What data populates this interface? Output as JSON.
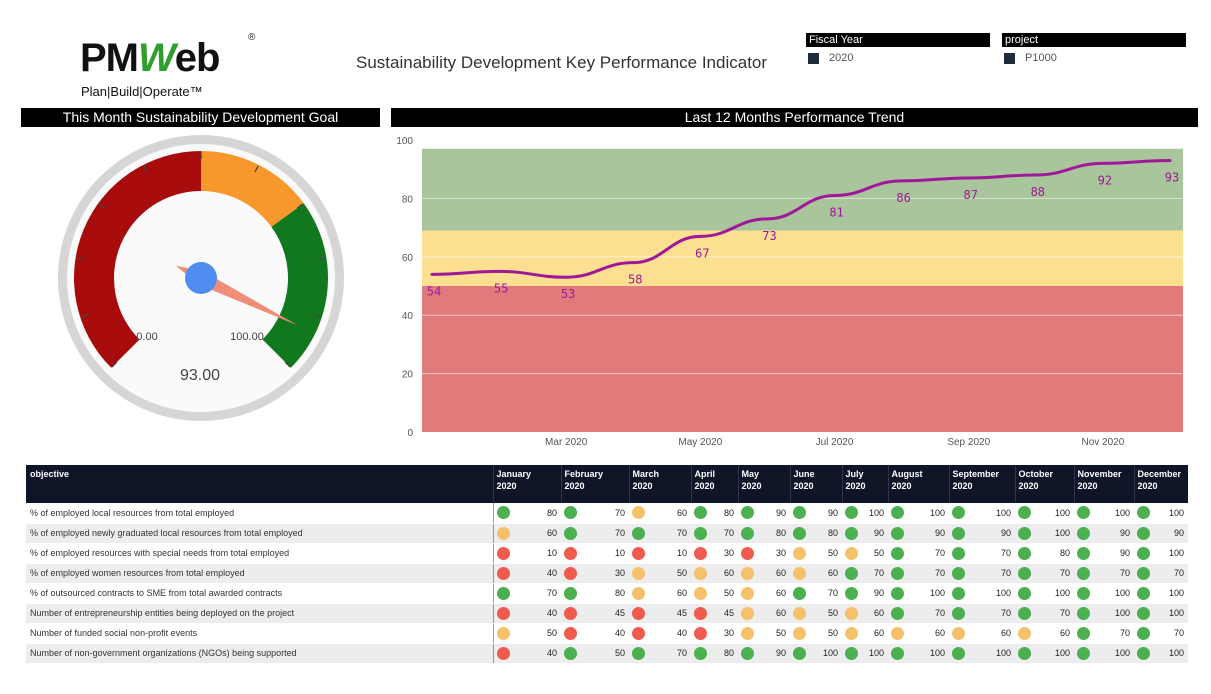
{
  "logo": {
    "word_part1": "PM",
    "word_part2": "W",
    "word_part3": "eb",
    "registered": "®",
    "tagline": "Plan|Build|Operate™"
  },
  "dashboard_title": "Sustainability Development Key Performance Indicator",
  "slicers": {
    "fiscal_year": {
      "label": "Fiscal Year",
      "value": "2020"
    },
    "project": {
      "label": "project",
      "value": "P1000"
    }
  },
  "panels": {
    "gauge_title": "This Month Sustainability Development Goal",
    "trend_title": "Last 12 Months Performance Trend"
  },
  "colors": {
    "green": "#4caf50",
    "amber": "#f5c26b",
    "red": "#ef5b4f",
    "line": "#a0189a",
    "band_green": "#a9c59b",
    "band_yellow": "#fddf91",
    "band_red": "#e17b7b",
    "gauge_red": "#a80b0b",
    "gauge_orange": "#f7972c",
    "gauge_green": "#12781e",
    "needle": "#ef8d77",
    "hub": "#4f8ef0"
  },
  "chart_data": [
    {
      "type": "gauge",
      "title": "This Month Sustainability Development Goal",
      "value": 93,
      "value_label": "93.00",
      "min": 0,
      "max": 100,
      "min_label": "0.00",
      "max_label": "100.00",
      "bands": [
        {
          "from": 0,
          "to": 50,
          "color": "#a80b0b"
        },
        {
          "from": 50,
          "to": 70,
          "color": "#f7972c"
        },
        {
          "from": 70,
          "to": 100,
          "color": "#12781e"
        }
      ]
    },
    {
      "type": "line",
      "title": "Last 12 Months Performance Trend",
      "x": [
        "Jan 2020",
        "Feb 2020",
        "Mar 2020",
        "Apr 2020",
        "May 2020",
        "Jun 2020",
        "Jul 2020",
        "Aug 2020",
        "Sep 2020",
        "Oct 2020",
        "Nov 2020",
        "Dec 2020"
      ],
      "x_tick_labels": [
        "Mar 2020",
        "May 2020",
        "Jul 2020",
        "Sep 2020",
        "Nov 2020"
      ],
      "values": [
        54,
        55,
        53,
        58,
        67,
        73,
        81,
        86,
        87,
        88,
        92,
        93
      ],
      "ylim": [
        0,
        100
      ],
      "y_ticks": [
        0,
        20,
        40,
        60,
        80,
        100
      ],
      "bands": [
        {
          "from": 0,
          "to": 50,
          "color": "#e17b7b"
        },
        {
          "from": 50,
          "to": 69,
          "color": "#fddf91"
        },
        {
          "from": 69,
          "to": 97,
          "color": "#a9c59b"
        }
      ],
      "grid": true
    },
    {
      "type": "table",
      "columns": [
        {
          "label": "objective"
        },
        {
          "label": "January\n2020"
        },
        {
          "label": "February\n2020"
        },
        {
          "label": "March\n2020"
        },
        {
          "label": "April\n2020"
        },
        {
          "label": "May\n2020"
        },
        {
          "label": "June\n2020"
        },
        {
          "label": "July\n2020"
        },
        {
          "label": "August\n2020"
        },
        {
          "label": "September\n2020"
        },
        {
          "label": "October\n2020"
        },
        {
          "label": "November\n2020"
        },
        {
          "label": "December\n2020"
        }
      ],
      "rows": [
        {
          "objective": "% of employed local resources from total employed",
          "cells": [
            [
              "green",
              80
            ],
            [
              "green",
              70
            ],
            [
              "amber",
              60
            ],
            [
              "green",
              80
            ],
            [
              "green",
              90
            ],
            [
              "green",
              90
            ],
            [
              "green",
              100
            ],
            [
              "green",
              100
            ],
            [
              "green",
              100
            ],
            [
              "green",
              100
            ],
            [
              "green",
              100
            ],
            [
              "green",
              100
            ]
          ]
        },
        {
          "objective": "% of employed newly graduated local resources from total employed",
          "cells": [
            [
              "amber",
              60
            ],
            [
              "green",
              70
            ],
            [
              "green",
              70
            ],
            [
              "green",
              70
            ],
            [
              "green",
              80
            ],
            [
              "green",
              80
            ],
            [
              "green",
              90
            ],
            [
              "green",
              90
            ],
            [
              "green",
              90
            ],
            [
              "green",
              100
            ],
            [
              "green",
              90
            ],
            [
              "green",
              90
            ]
          ]
        },
        {
          "objective": "% of employed resources with special needs from total employed",
          "cells": [
            [
              "red",
              10
            ],
            [
              "red",
              10
            ],
            [
              "red",
              10
            ],
            [
              "red",
              30
            ],
            [
              "red",
              30
            ],
            [
              "amber",
              50
            ],
            [
              "amber",
              50
            ],
            [
              "green",
              70
            ],
            [
              "green",
              70
            ],
            [
              "green",
              80
            ],
            [
              "green",
              90
            ],
            [
              "green",
              100
            ]
          ]
        },
        {
          "objective": "% of employed women resources from total employed",
          "cells": [
            [
              "red",
              40
            ],
            [
              "red",
              30
            ],
            [
              "amber",
              50
            ],
            [
              "amber",
              60
            ],
            [
              "amber",
              60
            ],
            [
              "amber",
              60
            ],
            [
              "green",
              70
            ],
            [
              "green",
              70
            ],
            [
              "green",
              70
            ],
            [
              "green",
              70
            ],
            [
              "green",
              70
            ],
            [
              "green",
              70
            ]
          ]
        },
        {
          "objective": "% of outsourced contracts to SME from total awarded contracts",
          "cells": [
            [
              "green",
              70
            ],
            [
              "green",
              80
            ],
            [
              "amber",
              60
            ],
            [
              "amber",
              50
            ],
            [
              "amber",
              60
            ],
            [
              "green",
              70
            ],
            [
              "green",
              90
            ],
            [
              "green",
              100
            ],
            [
              "green",
              100
            ],
            [
              "green",
              100
            ],
            [
              "green",
              100
            ],
            [
              "green",
              100
            ]
          ]
        },
        {
          "objective": "Number of entrepreneurship entities being deployed on the project",
          "cells": [
            [
              "red",
              40
            ],
            [
              "red",
              45
            ],
            [
              "red",
              45
            ],
            [
              "red",
              45
            ],
            [
              "amber",
              60
            ],
            [
              "amber",
              50
            ],
            [
              "amber",
              60
            ],
            [
              "green",
              70
            ],
            [
              "green",
              70
            ],
            [
              "green",
              70
            ],
            [
              "green",
              100
            ],
            [
              "green",
              100
            ]
          ]
        },
        {
          "objective": "Number of funded social non-profit events",
          "cells": [
            [
              "amber",
              50
            ],
            [
              "red",
              40
            ],
            [
              "red",
              40
            ],
            [
              "red",
              30
            ],
            [
              "amber",
              50
            ],
            [
              "amber",
              50
            ],
            [
              "amber",
              60
            ],
            [
              "amber",
              60
            ],
            [
              "amber",
              60
            ],
            [
              "amber",
              60
            ],
            [
              "green",
              70
            ],
            [
              "green",
              70
            ]
          ]
        },
        {
          "objective": "Number of non-government organizations (NGOs) being supported",
          "cells": [
            [
              "red",
              40
            ],
            [
              "green",
              50
            ],
            [
              "green",
              70
            ],
            [
              "green",
              80
            ],
            [
              "green",
              90
            ],
            [
              "green",
              100
            ],
            [
              "green",
              100
            ],
            [
              "green",
              100
            ],
            [
              "green",
              100
            ],
            [
              "green",
              100
            ],
            [
              "green",
              100
            ],
            [
              "green",
              100
            ]
          ]
        }
      ]
    }
  ]
}
